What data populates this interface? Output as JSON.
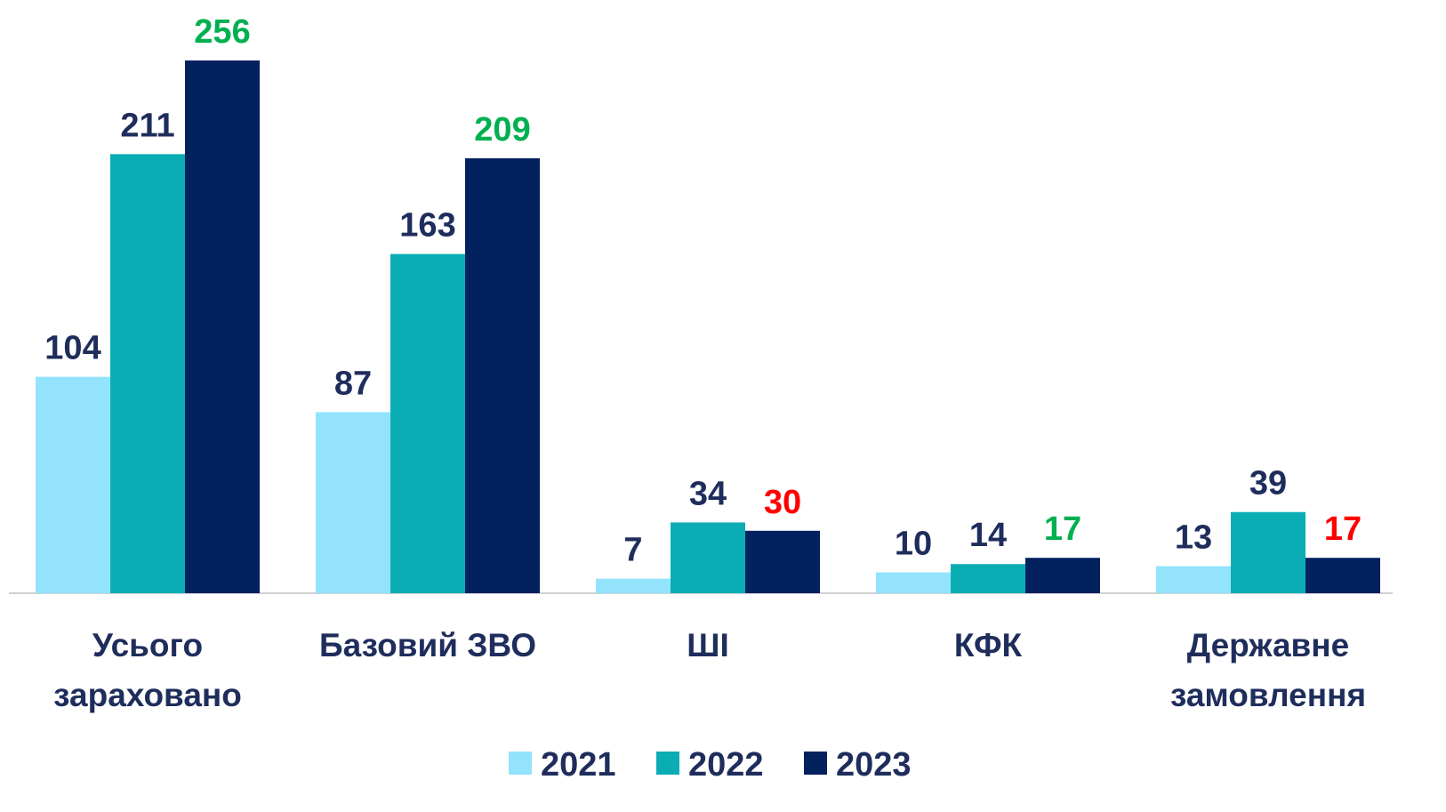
{
  "chart_data": {
    "type": "bar",
    "categories": [
      "Усього зараховано",
      "Базовий ЗВО",
      "ШІ",
      "КФК",
      "Державне замовлення"
    ],
    "series": [
      {
        "name": "2021",
        "color": "#93e3fd",
        "values": [
          104,
          87,
          7,
          10,
          13
        ],
        "label_colors": [
          "#1f2d5c",
          "#1f2d5c",
          "#1f2d5c",
          "#1f2d5c",
          "#1f2d5c"
        ]
      },
      {
        "name": "2022",
        "color": "#0badb5",
        "values": [
          211,
          163,
          34,
          14,
          39
        ],
        "label_colors": [
          "#1f2d5c",
          "#1f2d5c",
          "#1f2d5c",
          "#1f2d5c",
          "#1f2d5c"
        ]
      },
      {
        "name": "2023",
        "color": "#03205f",
        "values": [
          256,
          209,
          30,
          17,
          17
        ],
        "label_colors": [
          "#00b050",
          "#00b050",
          "#ff0000",
          "#00b050",
          "#ff0000"
        ]
      }
    ],
    "legend": "bottom"
  }
}
